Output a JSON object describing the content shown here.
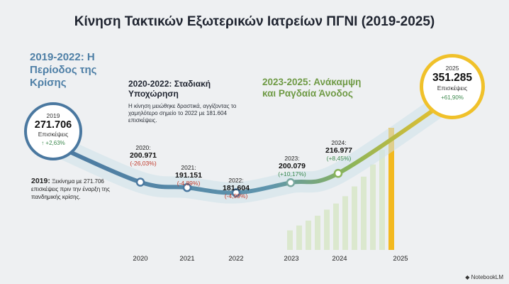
{
  "title": "Κίνηση Τακτικών Εξωτερικών Ιατρείων ΠΓΝΙ (2019-2025)",
  "phases": {
    "crisis_title": "2019-2022: Η Περίοδος της Κρίσης",
    "decline_title": "2020-2022: Σταδιακή Υποχώρηση",
    "decline_desc": "Η κίνηση μειώθηκε δραστικά, αγγίζοντας το χαμηλότερο σημείο το 2022 με 181.604 επισκέψεις.",
    "recovery_title": "2023-2025: Ανάκαμψη και Ραγδαία Άνοδος"
  },
  "note": {
    "year": "2019:",
    "text": "Ξεκίνημα με 271.706 επισκέψεις πριν την έναρξη της πανδημικής κρίσης."
  },
  "visits_label": "Επισκέψεις",
  "brand": "NotebookLM",
  "colors": {
    "blue": "#4a78a0",
    "green": "#8ab45a",
    "gold": "#f0c12a",
    "red": "#c0392b",
    "pos": "#3e8a4f"
  },
  "chart_data": {
    "type": "line",
    "title": "Κίνηση Τακτικών Εξωτερικών Ιατρείων ΠΓΝΙ (2019-2025)",
    "x": [
      "2019",
      "2020",
      "2021",
      "2022",
      "2023",
      "2024",
      "2025"
    ],
    "values": [
      271706,
      200971,
      191151,
      181604,
      200079,
      216977,
      351285
    ],
    "points": [
      {
        "year": "2019",
        "value": "271.706",
        "change": "↑ +2,63%"
      },
      {
        "year": "2020:",
        "value": "200.971",
        "change": "(-26,03%)"
      },
      {
        "year": "2021:",
        "value": "191.151",
        "change": "(-4,89%)"
      },
      {
        "year": "2022:",
        "value": "181.604",
        "change": "(-4,99%)"
      },
      {
        "year": "2023:",
        "value": "200.079",
        "change": "(+10,17%)"
      },
      {
        "year": "2024:",
        "value": "216.977",
        "change": "(+8,45%)"
      },
      {
        "year": "2025",
        "value": "351.285",
        "change": "+61,90%"
      }
    ],
    "x_ticks": [
      "2020",
      "2021",
      "2022",
      "2023",
      "2024",
      "2025"
    ],
    "decorative_bars": [
      0.16,
      0.2,
      0.24,
      0.28,
      0.33,
      0.38,
      0.44,
      0.52,
      0.6,
      0.7,
      0.82,
      1.0
    ],
    "ylim": [
      150000,
      380000
    ]
  }
}
